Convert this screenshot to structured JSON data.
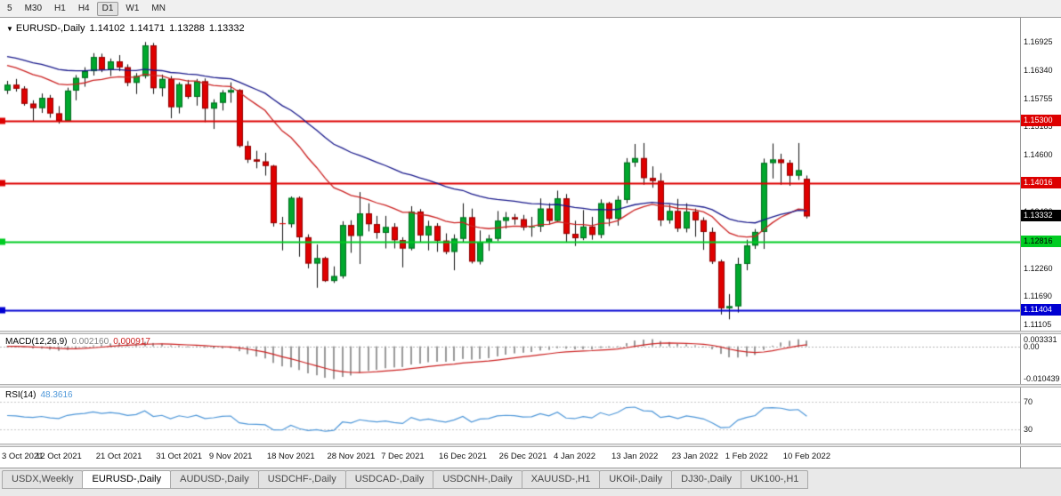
{
  "toolbar": {
    "periods": [
      "5",
      "M30",
      "H1",
      "H4",
      "D1",
      "W1",
      "MN"
    ],
    "active_period": "D1"
  },
  "main_chart": {
    "title": {
      "symbol": "EURUSD-,Daily",
      "open": "1.14102",
      "high": "1.14171",
      "low": "1.13288",
      "close": "1.13332"
    }
  },
  "chart_data": {
    "type": "candlestick",
    "symbol": "EURUSD",
    "timeframe": "Daily",
    "ylim": [
      1.11105,
      1.16925
    ],
    "price_axis_labels": [
      "1.16925",
      "1.16340",
      "1.15755",
      "1.15185",
      "1.14600",
      "1.14015",
      "1.13430",
      "1.12845",
      "1.12260",
      "1.11690",
      "1.11105"
    ],
    "up_color": "#00a82d",
    "down_color": "#e00000",
    "x_ticks": [
      {
        "label": "3 Oct 2021",
        "i": 0
      },
      {
        "label": "12 Oct 2021",
        "i": 6
      },
      {
        "label": "21 Oct 2021",
        "i": 13
      },
      {
        "label": "31 Oct 2021",
        "i": 20
      },
      {
        "label": "9 Nov 2021",
        "i": 26
      },
      {
        "label": "18 Nov 2021",
        "i": 33
      },
      {
        "label": "28 Nov 2021",
        "i": 40
      },
      {
        "label": "7 Dec 2021",
        "i": 46
      },
      {
        "label": "16 Dec 2021",
        "i": 53
      },
      {
        "label": "26 Dec 2021",
        "i": 60
      },
      {
        "label": "4 Jan 2022",
        "i": 66
      },
      {
        "label": "13 Jan 2022",
        "i": 73
      },
      {
        "label": "23 Jan 2022",
        "i": 80
      },
      {
        "label": "1 Feb 2022",
        "i": 86
      },
      {
        "label": "10 Feb 2022",
        "i": 93
      }
    ],
    "candles": [
      [
        1.1592,
        1.1612,
        1.1585,
        1.1604
      ],
      [
        1.1604,
        1.1616,
        1.159,
        1.1596
      ],
      [
        1.1596,
        1.1601,
        1.1561,
        1.1565
      ],
      [
        1.1565,
        1.1572,
        1.1529,
        1.1556
      ],
      [
        1.1556,
        1.1586,
        1.1546,
        1.1577
      ],
      [
        1.1577,
        1.1583,
        1.1536,
        1.1545
      ],
      [
        1.1545,
        1.156,
        1.1524,
        1.153
      ],
      [
        1.153,
        1.1598,
        1.1528,
        1.1592
      ],
      [
        1.1592,
        1.1624,
        1.1572,
        1.1618
      ],
      [
        1.1618,
        1.164,
        1.16,
        1.1632
      ],
      [
        1.1632,
        1.1669,
        1.1623,
        1.1661
      ],
      [
        1.1661,
        1.1668,
        1.163,
        1.1635
      ],
      [
        1.1635,
        1.1658,
        1.1622,
        1.1652
      ],
      [
        1.1652,
        1.1665,
        1.1632,
        1.164
      ],
      [
        1.164,
        1.1646,
        1.1601,
        1.1608
      ],
      [
        1.1608,
        1.1628,
        1.1585,
        1.1622
      ],
      [
        1.1622,
        1.1692,
        1.1617,
        1.1685
      ],
      [
        1.1685,
        1.169,
        1.1585,
        1.1597
      ],
      [
        1.1597,
        1.1625,
        1.158,
        1.1616
      ],
      [
        1.1616,
        1.1622,
        1.1535,
        1.1558
      ],
      [
        1.1558,
        1.1609,
        1.1545,
        1.1605
      ],
      [
        1.1605,
        1.1614,
        1.1575,
        1.1579
      ],
      [
        1.1579,
        1.1616,
        1.1561,
        1.1611
      ],
      [
        1.1611,
        1.1617,
        1.1527,
        1.1555
      ],
      [
        1.1555,
        1.1574,
        1.1513,
        1.1567
      ],
      [
        1.1567,
        1.1593,
        1.1551,
        1.1588
      ],
      [
        1.1588,
        1.1609,
        1.1567,
        1.1593
      ],
      [
        1.1593,
        1.1595,
        1.1475,
        1.1478
      ],
      [
        1.1478,
        1.1488,
        1.1443,
        1.145
      ],
      [
        1.145,
        1.1468,
        1.1432,
        1.1446
      ],
      [
        1.1446,
        1.1464,
        1.1417,
        1.1437
      ],
      [
        1.1437,
        1.1439,
        1.1312,
        1.1319
      ],
      [
        1.1319,
        1.1332,
        1.1263,
        1.1317
      ],
      [
        1.1317,
        1.1374,
        1.131,
        1.1371
      ],
      [
        1.1371,
        1.1374,
        1.125,
        1.129
      ],
      [
        1.129,
        1.1296,
        1.1226,
        1.1236
      ],
      [
        1.1236,
        1.1275,
        1.1186,
        1.1247
      ],
      [
        1.1247,
        1.125,
        1.1198,
        1.12
      ],
      [
        1.12,
        1.123,
        1.1196,
        1.121
      ],
      [
        1.121,
        1.1323,
        1.1205,
        1.1315
      ],
      [
        1.1315,
        1.1325,
        1.1258,
        1.1293
      ],
      [
        1.1293,
        1.1383,
        1.1235,
        1.1339
      ],
      [
        1.1339,
        1.136,
        1.1302,
        1.1317
      ],
      [
        1.1317,
        1.1334,
        1.1287,
        1.1299
      ],
      [
        1.1299,
        1.1334,
        1.1267,
        1.1311
      ],
      [
        1.1311,
        1.1319,
        1.1267,
        1.1284
      ],
      [
        1.1284,
        1.129,
        1.1228,
        1.1267
      ],
      [
        1.1267,
        1.1354,
        1.1263,
        1.1343
      ],
      [
        1.1343,
        1.1348,
        1.128,
        1.1294
      ],
      [
        1.1294,
        1.1324,
        1.1263,
        1.1313
      ],
      [
        1.1313,
        1.1319,
        1.126,
        1.1283
      ],
      [
        1.1283,
        1.1298,
        1.1255,
        1.126
      ],
      [
        1.126,
        1.1296,
        1.1222,
        1.1287
      ],
      [
        1.1287,
        1.136,
        1.128,
        1.1331
      ],
      [
        1.1331,
        1.1349,
        1.1236,
        1.124
      ],
      [
        1.124,
        1.1304,
        1.1234,
        1.128
      ],
      [
        1.128,
        1.1295,
        1.1262,
        1.1287
      ],
      [
        1.1287,
        1.1344,
        1.1282,
        1.1324
      ],
      [
        1.1324,
        1.1342,
        1.1308,
        1.1331
      ],
      [
        1.1331,
        1.1338,
        1.1316,
        1.1327
      ],
      [
        1.1327,
        1.1336,
        1.1304,
        1.131
      ],
      [
        1.131,
        1.1332,
        1.1291,
        1.1312
      ],
      [
        1.1312,
        1.137,
        1.1301,
        1.1349
      ],
      [
        1.1349,
        1.136,
        1.1316,
        1.1324
      ],
      [
        1.1324,
        1.1386,
        1.1321,
        1.137
      ],
      [
        1.137,
        1.1379,
        1.1279,
        1.1297
      ],
      [
        1.1297,
        1.1324,
        1.1272,
        1.1288
      ],
      [
        1.1288,
        1.1346,
        1.1284,
        1.1312
      ],
      [
        1.1312,
        1.1332,
        1.1285,
        1.1295
      ],
      [
        1.1295,
        1.1368,
        1.1288,
        1.136
      ],
      [
        1.136,
        1.1363,
        1.1313,
        1.1328
      ],
      [
        1.1328,
        1.1375,
        1.1314,
        1.1367
      ],
      [
        1.1367,
        1.1453,
        1.136,
        1.1444
      ],
      [
        1.1444,
        1.1482,
        1.1435,
        1.1453
      ],
      [
        1.1453,
        1.1484,
        1.1398,
        1.1412
      ],
      [
        1.1412,
        1.1436,
        1.1392,
        1.1406
      ],
      [
        1.1406,
        1.1422,
        1.1313,
        1.1325
      ],
      [
        1.1325,
        1.1357,
        1.1318,
        1.1344
      ],
      [
        1.1344,
        1.1369,
        1.1301,
        1.1308
      ],
      [
        1.1308,
        1.136,
        1.13,
        1.1343
      ],
      [
        1.1343,
        1.1349,
        1.1291,
        1.1325
      ],
      [
        1.1325,
        1.1331,
        1.1264,
        1.1301
      ],
      [
        1.1301,
        1.131,
        1.1235,
        1.124
      ],
      [
        1.124,
        1.1244,
        1.1131,
        1.1144
      ],
      [
        1.1144,
        1.1173,
        1.1121,
        1.1148
      ],
      [
        1.1148,
        1.1248,
        1.1135,
        1.1235
      ],
      [
        1.1235,
        1.1285,
        1.1222,
        1.1273
      ],
      [
        1.1273,
        1.1307,
        1.1266,
        1.1301
      ],
      [
        1.1301,
        1.1452,
        1.1266,
        1.1443
      ],
      [
        1.1443,
        1.1483,
        1.1411,
        1.145
      ],
      [
        1.145,
        1.1462,
        1.1398,
        1.1443
      ],
      [
        1.1443,
        1.1449,
        1.1396,
        1.1417
      ],
      [
        1.1417,
        1.1484,
        1.1408,
        1.1428
      ],
      [
        1.14102,
        1.14171,
        1.13288,
        1.13332
      ]
    ],
    "moving_averages": [
      {
        "type": "ema",
        "period": 20,
        "color": "#cc2222",
        "seed": 1.1648
      },
      {
        "type": "ema",
        "period": 40,
        "color": "#1a1a8c",
        "seed": 1.1665
      }
    ],
    "hlines": [
      {
        "price": 1.153,
        "label": "1.15300",
        "color": "#dd0000",
        "text": "#ffffff"
      },
      {
        "price": 1.14016,
        "label": "1.14016",
        "color": "#dd0000",
        "text": "#ffffff"
      },
      {
        "price": 1.12816,
        "label": "1.12816",
        "color": "#00cc22",
        "text": "#000000"
      },
      {
        "price": 1.11404,
        "label": "1.11404",
        "color": "#0000d2",
        "text": "#ffffff"
      }
    ],
    "current": {
      "price": 1.13332,
      "label": "1.13332",
      "color": "#000000",
      "text": "#ffffff"
    },
    "indicators": {
      "macd": {
        "label": "MACD(12,26,9)",
        "value_main": "0.002160",
        "value_signal": "0.000917",
        "fast": 12,
        "slow": 26,
        "signal": 9,
        "hist_color": "#9a9a9a",
        "line_color": "#cc2222",
        "axis_labels": [
          "0.003331",
          "0.00",
          "-0.010439"
        ]
      },
      "rsi": {
        "label": "RSI(14)",
        "value": "48.3616",
        "period": 14,
        "color": "#4e97d9",
        "levels": [
          "70",
          "30"
        ],
        "level_values": [
          70,
          30
        ]
      }
    }
  },
  "tabs": {
    "items": [
      {
        "label": "USDX,Weekly",
        "active": false
      },
      {
        "label": "EURUSD-,Daily",
        "active": true
      },
      {
        "label": "AUDUSD-,Daily",
        "active": false
      },
      {
        "label": "USDCHF-,Daily",
        "active": false
      },
      {
        "label": "USDCAD-,Daily",
        "active": false
      },
      {
        "label": "USDCNH-,Daily",
        "active": false
      },
      {
        "label": "XAUUSD-,H1",
        "active": false
      },
      {
        "label": "UKOil-,Daily",
        "active": false
      },
      {
        "label": "DJ30-,Daily",
        "active": false
      },
      {
        "label": "UK100-,H1",
        "active": false
      }
    ]
  }
}
